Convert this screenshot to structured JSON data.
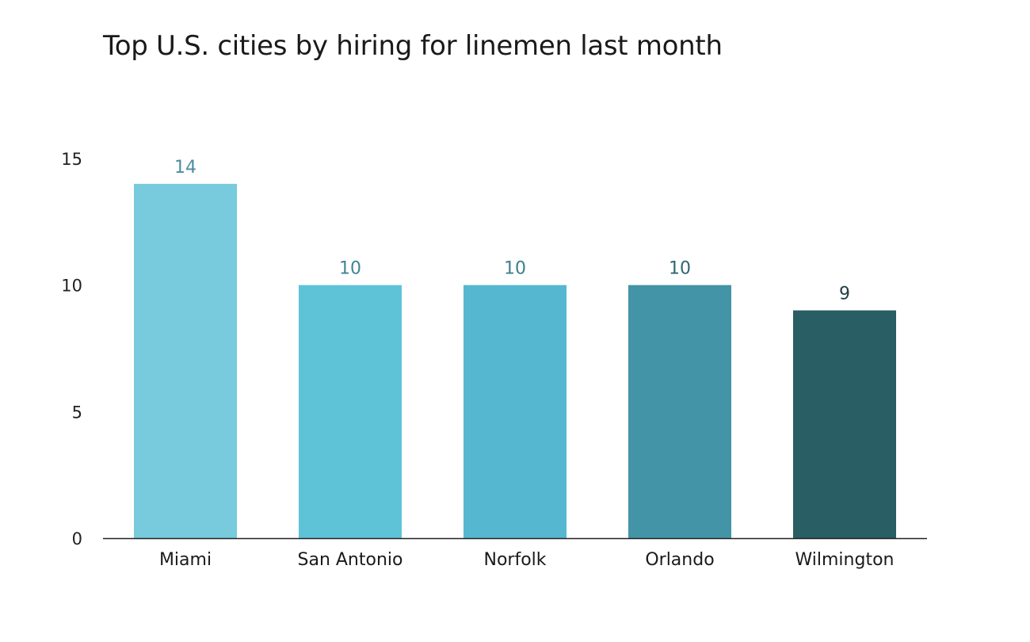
{
  "chart_data": {
    "type": "bar",
    "title": "Top U.S. cities by hiring for linemen last month",
    "xlabel": "",
    "ylabel": "",
    "categories": [
      "Miami",
      "San Antonio",
      "Norfolk",
      "Orlando",
      "Wilmington"
    ],
    "values": [
      14,
      10,
      10,
      10,
      9
    ],
    "data_labels": [
      "14",
      "10",
      "10",
      "10",
      "9"
    ],
    "ylim": [
      0,
      15
    ],
    "yticks": [
      0,
      5,
      10,
      15
    ],
    "ytick_labels": [
      "0",
      "5",
      "10",
      "15"
    ],
    "grid": false,
    "legend": "none",
    "bar_colors": [
      "#77cbdc",
      "#5fc3d8",
      "#55b8d0",
      "#4394a6",
      "#285e64"
    ],
    "label_colors": [
      "#4b8e9b",
      "#3f8593",
      "#3d7f8c",
      "#2f6570",
      "#233f45"
    ],
    "axis_color": "#222222"
  }
}
